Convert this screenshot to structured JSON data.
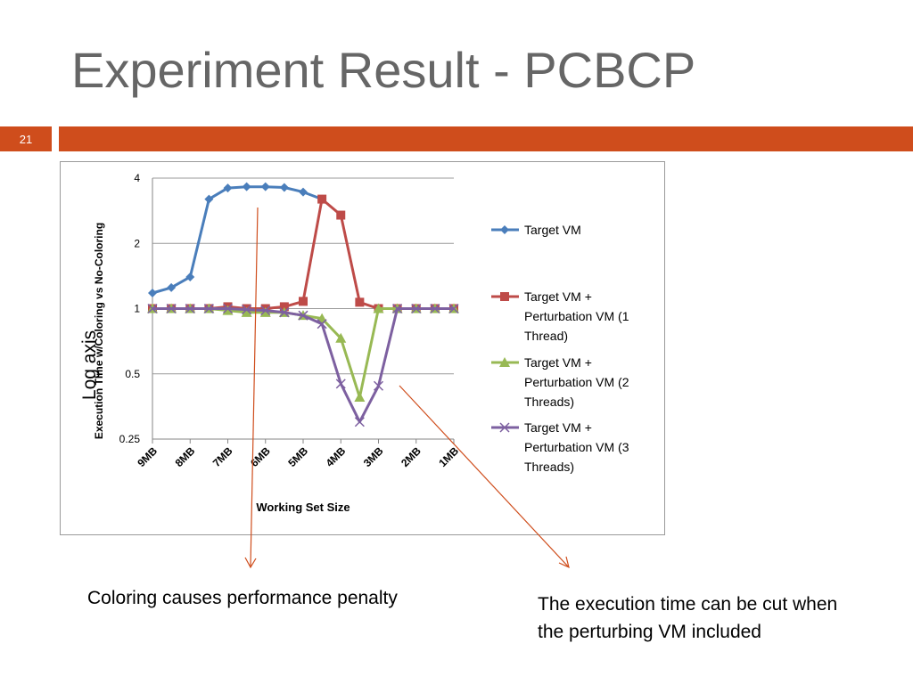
{
  "slide": {
    "title": "Experiment Result - PCBCP",
    "page_number": "21",
    "accent_color": "#cf4d1c"
  },
  "annotations": {
    "log_axis": "Log axis",
    "penalty": "Coloring causes performance penalty",
    "cut_line1": "The execution time can be cut when",
    "cut_line2": "the perturbing VM included"
  },
  "chart_data": {
    "type": "line",
    "xlabel": "Working Set Size",
    "ylabel": "Execution TIme w/Coloring vs No-Coloring",
    "y_scale": "log",
    "ylim": [
      0.25,
      4
    ],
    "yticks": [
      4,
      2,
      1,
      0.5,
      0.25
    ],
    "ytick_labels": [
      "4",
      "2",
      "1",
      "0.5",
      "0.25"
    ],
    "xtick_labels": [
      "9MB",
      "8MB",
      "7MB",
      "6MB",
      "5MB",
      "4MB",
      "3MB",
      "2MB",
      "1MB"
    ],
    "x": [
      9,
      8.5,
      8,
      7.5,
      7,
      6.5,
      6,
      5.5,
      5,
      4.5,
      4,
      3.5,
      3,
      2.5,
      2,
      1.5,
      1
    ],
    "grid": "horizontal",
    "legend": "right",
    "series": [
      {
        "name": "Target VM",
        "color": "#4a7ebb",
        "marker": "diamond",
        "values": [
          1.18,
          1.25,
          1.4,
          3.2,
          3.6,
          3.65,
          3.65,
          3.62,
          3.45,
          3.2,
          null,
          null,
          null,
          null,
          null,
          null,
          null
        ]
      },
      {
        "name": "Target VM + Perturbation VM (1 Thread)",
        "color": "#be4b48",
        "marker": "square",
        "values": [
          1.0,
          1.0,
          1.0,
          1.0,
          1.02,
          1.0,
          1.0,
          1.02,
          1.08,
          3.2,
          2.7,
          1.07,
          1.0,
          1.0,
          1.0,
          1.0,
          1.0
        ]
      },
      {
        "name": "Target VM + Perturbation VM (2 Threads)",
        "color": "#98b954",
        "marker": "triangle",
        "values": [
          1.0,
          1.0,
          1.0,
          1.0,
          0.98,
          0.96,
          0.96,
          0.96,
          0.93,
          0.9,
          0.73,
          0.39,
          1.0,
          1.0,
          1.0,
          1.0,
          1.0
        ]
      },
      {
        "name": "Target VM + Perturbation VM (3 Threads)",
        "color": "#7d60a0",
        "marker": "x",
        "values": [
          1.0,
          1.0,
          1.0,
          1.0,
          1.0,
          0.99,
          0.98,
          0.96,
          0.93,
          0.85,
          0.45,
          0.3,
          0.44,
          1.0,
          1.0,
          1.0,
          1.0
        ]
      }
    ],
    "legend_entries": [
      [
        "Target VM"
      ],
      [
        "Target VM +",
        "Perturbation VM (1",
        "Thread)"
      ],
      [
        "Target VM +",
        "Perturbation VM (2",
        "Threads)"
      ],
      [
        "Target VM +",
        "Perturbation VM (3",
        "Threads)"
      ]
    ]
  }
}
